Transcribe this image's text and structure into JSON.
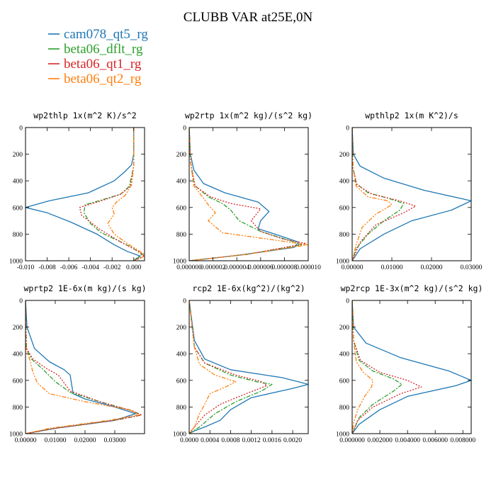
{
  "figure": {
    "title": "CLUBB VAR at25E,0N"
  },
  "legend": [
    {
      "label": "cam078_qt5_rg",
      "color": "#1f77b4",
      "dash": ""
    },
    {
      "label": "beta06_dflt_rg",
      "color": "#2ca02c",
      "dash": "6,2,2,2"
    },
    {
      "label": "beta06_qt1_rg",
      "color": "#d62728",
      "dash": "2,2"
    },
    {
      "label": "beta06_qt2_rg",
      "color": "#ff7f0e",
      "dash": "6,2,2,2,2,2"
    }
  ],
  "chart_data": [
    {
      "type": "line",
      "title": "wp2thlp  1x(m^2 K)/s^2",
      "xlim": [
        -0.01,
        0.001
      ],
      "ylim": [
        1000,
        0
      ],
      "xticks": [
        -0.01,
        -0.008,
        -0.006,
        -0.004,
        -0.002,
        0.0
      ],
      "xtick_labels": [
        "-0.010",
        "-0.008",
        "-0.006",
        "-0.004",
        "-0.002",
        "0.000"
      ],
      "yticks": [
        0,
        200,
        400,
        600,
        800,
        1000
      ],
      "ytick_labels": [
        "0",
        "200",
        "400",
        "600",
        "800",
        "1000"
      ],
      "series": [
        {
          "name": "cam078_qt5_rg",
          "x": [
            0,
            0,
            -0.0002,
            -0.0008,
            -0.0018,
            -0.0042,
            -0.0078,
            -0.01,
            -0.008,
            -0.0058,
            -0.0034,
            -0.0018,
            -0.0006,
            0.0006,
            0.0003,
            0
          ],
          "y": [
            0,
            200,
            280,
            330,
            400,
            490,
            550,
            600,
            640,
            710,
            800,
            880,
            930,
            965,
            985,
            1000
          ]
        },
        {
          "name": "beta06_dflt_rg",
          "x": [
            0,
            0,
            -0.0004,
            -0.0012,
            -0.0028,
            -0.0045,
            -0.0046,
            -0.004,
            -0.003,
            -0.0014,
            -0.0002,
            0.0008,
            0.0002,
            0
          ],
          "y": [
            0,
            290,
            440,
            500,
            540,
            580,
            640,
            720,
            790,
            850,
            900,
            950,
            985,
            1000
          ]
        },
        {
          "name": "beta06_qt1_rg",
          "x": [
            0,
            0,
            -0.0003,
            -0.0012,
            -0.003,
            -0.005,
            -0.0048,
            -0.0032,
            -0.0014,
            0.0002,
            0.001,
            0.0002,
            0
          ],
          "y": [
            0,
            290,
            440,
            500,
            550,
            600,
            660,
            760,
            850,
            920,
            965,
            990,
            1000
          ]
        },
        {
          "name": "beta06_qt2_rg",
          "x": [
            0,
            0,
            -0.0002,
            -0.0008,
            -0.0016,
            -0.002,
            -0.0018,
            -0.0024,
            -0.0018,
            -0.0006,
            0.0004,
            0.0011,
            0.0004,
            0
          ],
          "y": [
            0,
            290,
            430,
            510,
            560,
            600,
            650,
            720,
            800,
            870,
            920,
            960,
            990,
            1000
          ]
        }
      ]
    },
    {
      "type": "line",
      "title": "wp2rtp  1x(m^2 kg)/(s^2 kg)",
      "xlim": [
        0,
        1e-05
      ],
      "ylim": [
        1000,
        0
      ],
      "xticks": [
        0,
        2e-06,
        4e-06,
        6e-06,
        8e-06,
        1e-05
      ],
      "xtick_labels": [
        "0.000000",
        "0.000002",
        "0.000004",
        "0.000006",
        "0.000008",
        "0.000010"
      ],
      "yticks": [
        0,
        200,
        400,
        600,
        800,
        1000
      ],
      "ytick_labels": [
        "0",
        "200",
        "400",
        "600",
        "800",
        "1000"
      ],
      "series": [
        {
          "name": "cam078_qt5_rg",
          "x": [
            0,
            1e-07,
            4e-07,
            1.2e-06,
            3e-06,
            5.8e-06,
            6.7e-06,
            6e-06,
            5.8e-06,
            7.2e-06,
            9.2e-06,
            8.8e-06,
            4e-06,
            0
          ],
          "y": [
            0,
            200,
            320,
            420,
            490,
            560,
            630,
            700,
            760,
            800,
            860,
            900,
            960,
            1000
          ]
        },
        {
          "name": "beta06_dflt_rg",
          "x": [
            0,
            1e-07,
            4e-07,
            1.6e-06,
            2.8e-06,
            3.5e-06,
            4.2e-06,
            6e-06,
            8.5e-06,
            9.5e-06,
            5e-06,
            0
          ],
          "y": [
            0,
            250,
            430,
            520,
            570,
            620,
            700,
            780,
            850,
            880,
            950,
            1000
          ]
        },
        {
          "name": "beta06_qt1_rg",
          "x": [
            0,
            1e-07,
            5e-07,
            1.8e-06,
            3.5e-06,
            6e-06,
            5.2e-06,
            6e-06,
            8e-06,
            9.8e-06,
            5e-06,
            0
          ],
          "y": [
            0,
            250,
            440,
            520,
            570,
            610,
            700,
            780,
            840,
            870,
            950,
            1000
          ]
        },
        {
          "name": "beta06_qt2_rg",
          "x": [
            0,
            1e-07,
            4e-07,
            1.2e-06,
            1.6e-06,
            2.2e-06,
            1.6e-06,
            2.8e-06,
            6.8e-06,
            1e-05,
            5e-06,
            0
          ],
          "y": [
            0,
            250,
            440,
            530,
            580,
            640,
            700,
            790,
            840,
            880,
            950,
            1000
          ]
        }
      ]
    },
    {
      "type": "line",
      "title": "wpthlp2  1x(m K^2)/s",
      "xlim": [
        0,
        0.03
      ],
      "ylim": [
        1000,
        0
      ],
      "xticks": [
        0,
        0.01,
        0.02,
        0.03
      ],
      "xtick_labels": [
        "0.00000",
        "0.01000",
        "0.02000",
        "0.03000"
      ],
      "yticks": [
        0,
        200,
        400,
        600,
        800,
        1000
      ],
      "ytick_labels": [
        "0",
        "200",
        "400",
        "600",
        "800",
        "1000"
      ],
      "series": [
        {
          "name": "cam078_qt5_rg",
          "x": [
            0,
            0.0003,
            0.002,
            0.008,
            0.018,
            0.03,
            0.025,
            0.015,
            0.008,
            0.002,
            0
          ],
          "y": [
            0,
            200,
            290,
            380,
            470,
            550,
            620,
            700,
            800,
            910,
            1000
          ]
        },
        {
          "name": "beta06_dflt_rg",
          "x": [
            0,
            0.0002,
            0.001,
            0.004,
            0.009,
            0.013,
            0.012,
            0.008,
            0.004,
            0.001,
            0
          ],
          "y": [
            0,
            300,
            420,
            490,
            530,
            570,
            620,
            700,
            800,
            910,
            1000
          ]
        },
        {
          "name": "beta06_qt1_rg",
          "x": [
            0,
            0.0002,
            0.0012,
            0.005,
            0.012,
            0.016,
            0.013,
            0.006,
            0.002,
            0
          ],
          "y": [
            0,
            300,
            430,
            500,
            550,
            590,
            640,
            730,
            860,
            1000
          ]
        },
        {
          "name": "beta06_qt2_rg",
          "x": [
            0,
            0.0002,
            0.001,
            0.004,
            0.009,
            0.01,
            0.006,
            0.0025,
            0.001,
            0
          ],
          "y": [
            0,
            300,
            440,
            520,
            550,
            580,
            650,
            750,
            880,
            1000
          ]
        }
      ]
    },
    {
      "type": "line",
      "title": "wprtp2  1E-6x(m kg)/(s kg)",
      "xlim": [
        0,
        0.04
      ],
      "ylim": [
        1000,
        0
      ],
      "xticks": [
        0,
        0.01,
        0.02,
        0.03
      ],
      "xtick_labels": [
        "0.00000",
        "0.01000",
        "0.02000",
        "0.03000"
      ],
      "yticks": [
        0,
        200,
        400,
        600,
        800,
        1000
      ],
      "ytick_labels": [
        "0",
        "200",
        "400",
        "600",
        "800",
        "1000"
      ],
      "series": [
        {
          "name": "cam078_qt5_rg",
          "x": [
            0,
            0.0005,
            0.003,
            0.008,
            0.013,
            0.015,
            0.016,
            0.02,
            0.03,
            0.037,
            0.03,
            0.01,
            0
          ],
          "y": [
            0,
            200,
            360,
            460,
            520,
            560,
            700,
            740,
            800,
            850,
            900,
            960,
            1000
          ]
        },
        {
          "name": "beta06_dflt_rg",
          "x": [
            0,
            0.0003,
            0.002,
            0.006,
            0.01,
            0.015,
            0.025,
            0.036,
            0.039,
            0.03,
            0.01,
            0
          ],
          "y": [
            0,
            360,
            440,
            520,
            610,
            690,
            760,
            830,
            860,
            900,
            960,
            1000
          ]
        },
        {
          "name": "beta06_qt1_rg",
          "x": [
            0,
            0.0003,
            0.0025,
            0.007,
            0.011,
            0.015,
            0.025,
            0.036,
            0.039,
            0.03,
            0.01,
            0
          ],
          "y": [
            0,
            360,
            440,
            510,
            560,
            680,
            760,
            830,
            860,
            900,
            960,
            1000
          ]
        },
        {
          "name": "beta06_qt2_rg",
          "x": [
            0,
            0.0002,
            0.0015,
            0.0025,
            0.004,
            0.008,
            0.02,
            0.035,
            0.038,
            0.028,
            0.008,
            0
          ],
          "y": [
            0,
            360,
            450,
            540,
            620,
            700,
            760,
            820,
            860,
            900,
            960,
            1000
          ]
        }
      ]
    },
    {
      "type": "line",
      "title": "rcp2  1E-6x(kg^2)/(kg^2)",
      "xlim": [
        0,
        0.0023
      ],
      "ylim": [
        1000,
        0
      ],
      "xticks": [
        0,
        0.0004,
        0.0008,
        0.0012,
        0.0016,
        0.002
      ],
      "xtick_labels": [
        "0.0000",
        "0.0004",
        "0.0008",
        "0.0012",
        "0.0016",
        "0.0020"
      ],
      "yticks": [
        0,
        200,
        400,
        600,
        800,
        1000
      ],
      "ytick_labels": [
        "0",
        "200",
        "400",
        "600",
        "800",
        "1000"
      ],
      "series": [
        {
          "name": "cam078_qt5_rg",
          "x": [
            0,
            0.0001,
            0.0003,
            0.0008,
            0.0018,
            0.0023,
            0.002,
            0.0012,
            0.0008,
            0.0006,
            0.0003,
            0.0001,
            0
          ],
          "y": [
            0,
            300,
            440,
            520,
            580,
            630,
            660,
            730,
            820,
            900,
            950,
            980,
            1000
          ]
        },
        {
          "name": "beta06_dflt_rg",
          "x": [
            0,
            0.0001,
            0.0003,
            0.0008,
            0.0013,
            0.0016,
            0.0014,
            0.0009,
            0.0005,
            0.0002,
            0
          ],
          "y": [
            0,
            350,
            470,
            560,
            610,
            630,
            680,
            760,
            850,
            950,
            1000
          ]
        },
        {
          "name": "beta06_qt1_rg",
          "x": [
            0,
            0.0001,
            0.0003,
            0.0009,
            0.0014,
            0.0015,
            0.0011,
            0.0006,
            0.0003,
            0.0001,
            0
          ],
          "y": [
            0,
            350,
            470,
            560,
            610,
            640,
            700,
            780,
            860,
            950,
            1000
          ]
        },
        {
          "name": "beta06_qt2_rg",
          "x": [
            0,
            0.0001,
            0.0002,
            0.0005,
            0.0009,
            0.0007,
            0.0004,
            0.0003,
            0.0002,
            0.0001,
            0
          ],
          "y": [
            0,
            350,
            480,
            560,
            610,
            650,
            700,
            780,
            850,
            950,
            1000
          ]
        }
      ]
    },
    {
      "type": "line",
      "title": "wp2rcp  1E-3x(m^2 kg)/(s^2 kg)",
      "xlim": [
        0,
        0.0086
      ],
      "ylim": [
        1000,
        0
      ],
      "xticks": [
        0,
        0.002,
        0.004,
        0.006,
        0.008
      ],
      "xtick_labels": [
        "0.000000",
        "0.002000",
        "0.004000",
        "0.006000",
        "0.008000"
      ],
      "yticks": [
        0,
        200,
        400,
        600,
        800,
        1000
      ],
      "ytick_labels": [
        "0",
        "200",
        "400",
        "600",
        "800",
        "1000"
      ],
      "series": [
        {
          "name": "cam078_qt5_rg",
          "x": [
            0,
            0.0001,
            0.001,
            0.0035,
            0.007,
            0.0086,
            0.0075,
            0.004,
            0.002,
            0.0005,
            0
          ],
          "y": [
            0,
            200,
            320,
            430,
            530,
            600,
            640,
            720,
            820,
            930,
            1000
          ]
        },
        {
          "name": "beta06_dflt_rg",
          "x": [
            0,
            0.0001,
            0.0005,
            0.0015,
            0.003,
            0.0036,
            0.003,
            0.0015,
            0.0005,
            0
          ],
          "y": [
            0,
            300,
            450,
            530,
            590,
            630,
            680,
            780,
            880,
            1000
          ]
        },
        {
          "name": "beta06_qt1_rg",
          "x": [
            0,
            0.0001,
            0.0006,
            0.002,
            0.004,
            0.005,
            0.0035,
            0.0015,
            0.0004,
            0
          ],
          "y": [
            0,
            300,
            450,
            540,
            600,
            650,
            700,
            800,
            900,
            1000
          ]
        },
        {
          "name": "beta06_qt2_rg",
          "x": [
            0,
            0.0001,
            0.0003,
            0.0008,
            0.0015,
            0.0014,
            0.0009,
            0.0004,
            0.0001,
            0
          ],
          "y": [
            0,
            300,
            460,
            540,
            600,
            650,
            720,
            820,
            920,
            1000
          ]
        }
      ]
    }
  ]
}
